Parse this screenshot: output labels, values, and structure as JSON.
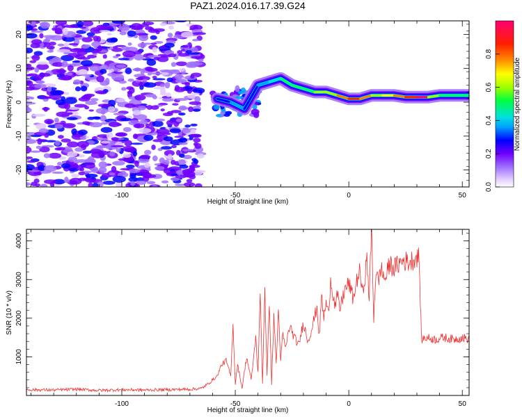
{
  "title": "PAZ1.2024.016.17.39.G24",
  "chart_data": [
    {
      "type": "heatmap",
      "xlabel": "Height of straight line (km)",
      "ylabel": "Frequency (Hz)",
      "xlim": [
        -142,
        53
      ],
      "ylim": [
        -25,
        24
      ],
      "xticks": [
        -100,
        -50,
        0,
        50
      ],
      "yticks": [
        -20,
        -10,
        0,
        10,
        20
      ],
      "colorbar": {
        "label": "Normalized spectral amplitude",
        "range": [
          0,
          1
        ],
        "ticks": [
          0.0,
          0.2,
          0.4,
          0.6,
          0.8
        ],
        "colors": [
          "#ffffff",
          "#e0c8ff",
          "#a070ff",
          "#7000ff",
          "#0000ff",
          "#00a0ff",
          "#00e0e0",
          "#00ff60",
          "#a0ff00",
          "#ffff00",
          "#ff8000",
          "#ff2000",
          "#ff0070"
        ]
      },
      "ridge": {
        "x": [
          -58,
          -52,
          -46,
          -40,
          -35,
          -30,
          -25,
          -20,
          -15,
          -10,
          -5,
          0,
          5,
          10,
          15,
          20,
          25,
          30,
          35,
          40,
          45,
          50,
          53
        ],
        "freq": [
          1,
          0,
          -2,
          5,
          6,
          7,
          5,
          4,
          3,
          3,
          2,
          1,
          1,
          2,
          2,
          2,
          1.5,
          1.5,
          1.5,
          2,
          2,
          2,
          2
        ],
        "amplitude": [
          0.25,
          0.3,
          0.25,
          0.35,
          0.4,
          0.45,
          0.45,
          0.5,
          0.55,
          0.6,
          0.7,
          0.85,
          0.7,
          0.55,
          0.65,
          0.7,
          0.8,
          0.9,
          0.55,
          0.5,
          0.45,
          0.45,
          0.45
        ]
      },
      "noise_region_x": [
        -142,
        -65
      ]
    },
    {
      "type": "line",
      "xlabel": "Height of straight line (km)",
      "ylabel": "SNR (10 * v/v)",
      "xlim": [
        -142,
        53
      ],
      "ylim": [
        0,
        4300
      ],
      "xticks": [
        -100,
        -50,
        0,
        50
      ],
      "yticks": [
        1000,
        2000,
        3000,
        4000
      ],
      "color": "#ee3030",
      "series": [
        {
          "x": [
            -142,
            -130,
            -120,
            -110,
            -100,
            -90,
            -80,
            -70,
            -65,
            -62,
            -60,
            -58,
            -56,
            -54,
            -52,
            -51,
            -50,
            -49,
            -47,
            -45,
            -43,
            -41,
            -40,
            -39,
            -38,
            -37,
            -36,
            -35,
            -34,
            -33,
            -32,
            -31,
            -30,
            -29,
            -28,
            -26,
            -24,
            -22,
            -20,
            -18,
            -16,
            -14,
            -13,
            -12,
            -11,
            -10,
            -9,
            -8,
            -6,
            -5,
            -4,
            -2,
            0,
            2,
            4,
            5,
            6,
            8,
            9,
            10,
            11,
            12,
            13,
            14,
            16,
            18,
            20,
            22,
            24,
            26,
            28,
            30,
            31,
            32,
            34,
            38,
            42,
            46,
            50,
            53
          ],
          "y": [
            150,
            140,
            160,
            130,
            150,
            140,
            150,
            160,
            180,
            300,
            400,
            500,
            800,
            900,
            500,
            1900,
            300,
            800,
            200,
            1000,
            400,
            1500,
            600,
            2600,
            300,
            2800,
            500,
            2500,
            300,
            2100,
            800,
            2200,
            900,
            1600,
            1200,
            1800,
            1500,
            1300,
            1900,
            1400,
            1800,
            2300,
            1500,
            2600,
            2000,
            2400,
            2100,
            3000,
            2300,
            2600,
            2200,
            2700,
            2900,
            2500,
            3100,
            3200,
            2600,
            3500,
            2500,
            4300,
            2000,
            3300,
            2900,
            3300,
            3000,
            3400,
            3300,
            3400,
            3500,
            3450,
            3500,
            3600,
            3550,
            1450,
            1500,
            1450,
            1500,
            1450,
            1500,
            1450
          ]
        }
      ]
    }
  ]
}
